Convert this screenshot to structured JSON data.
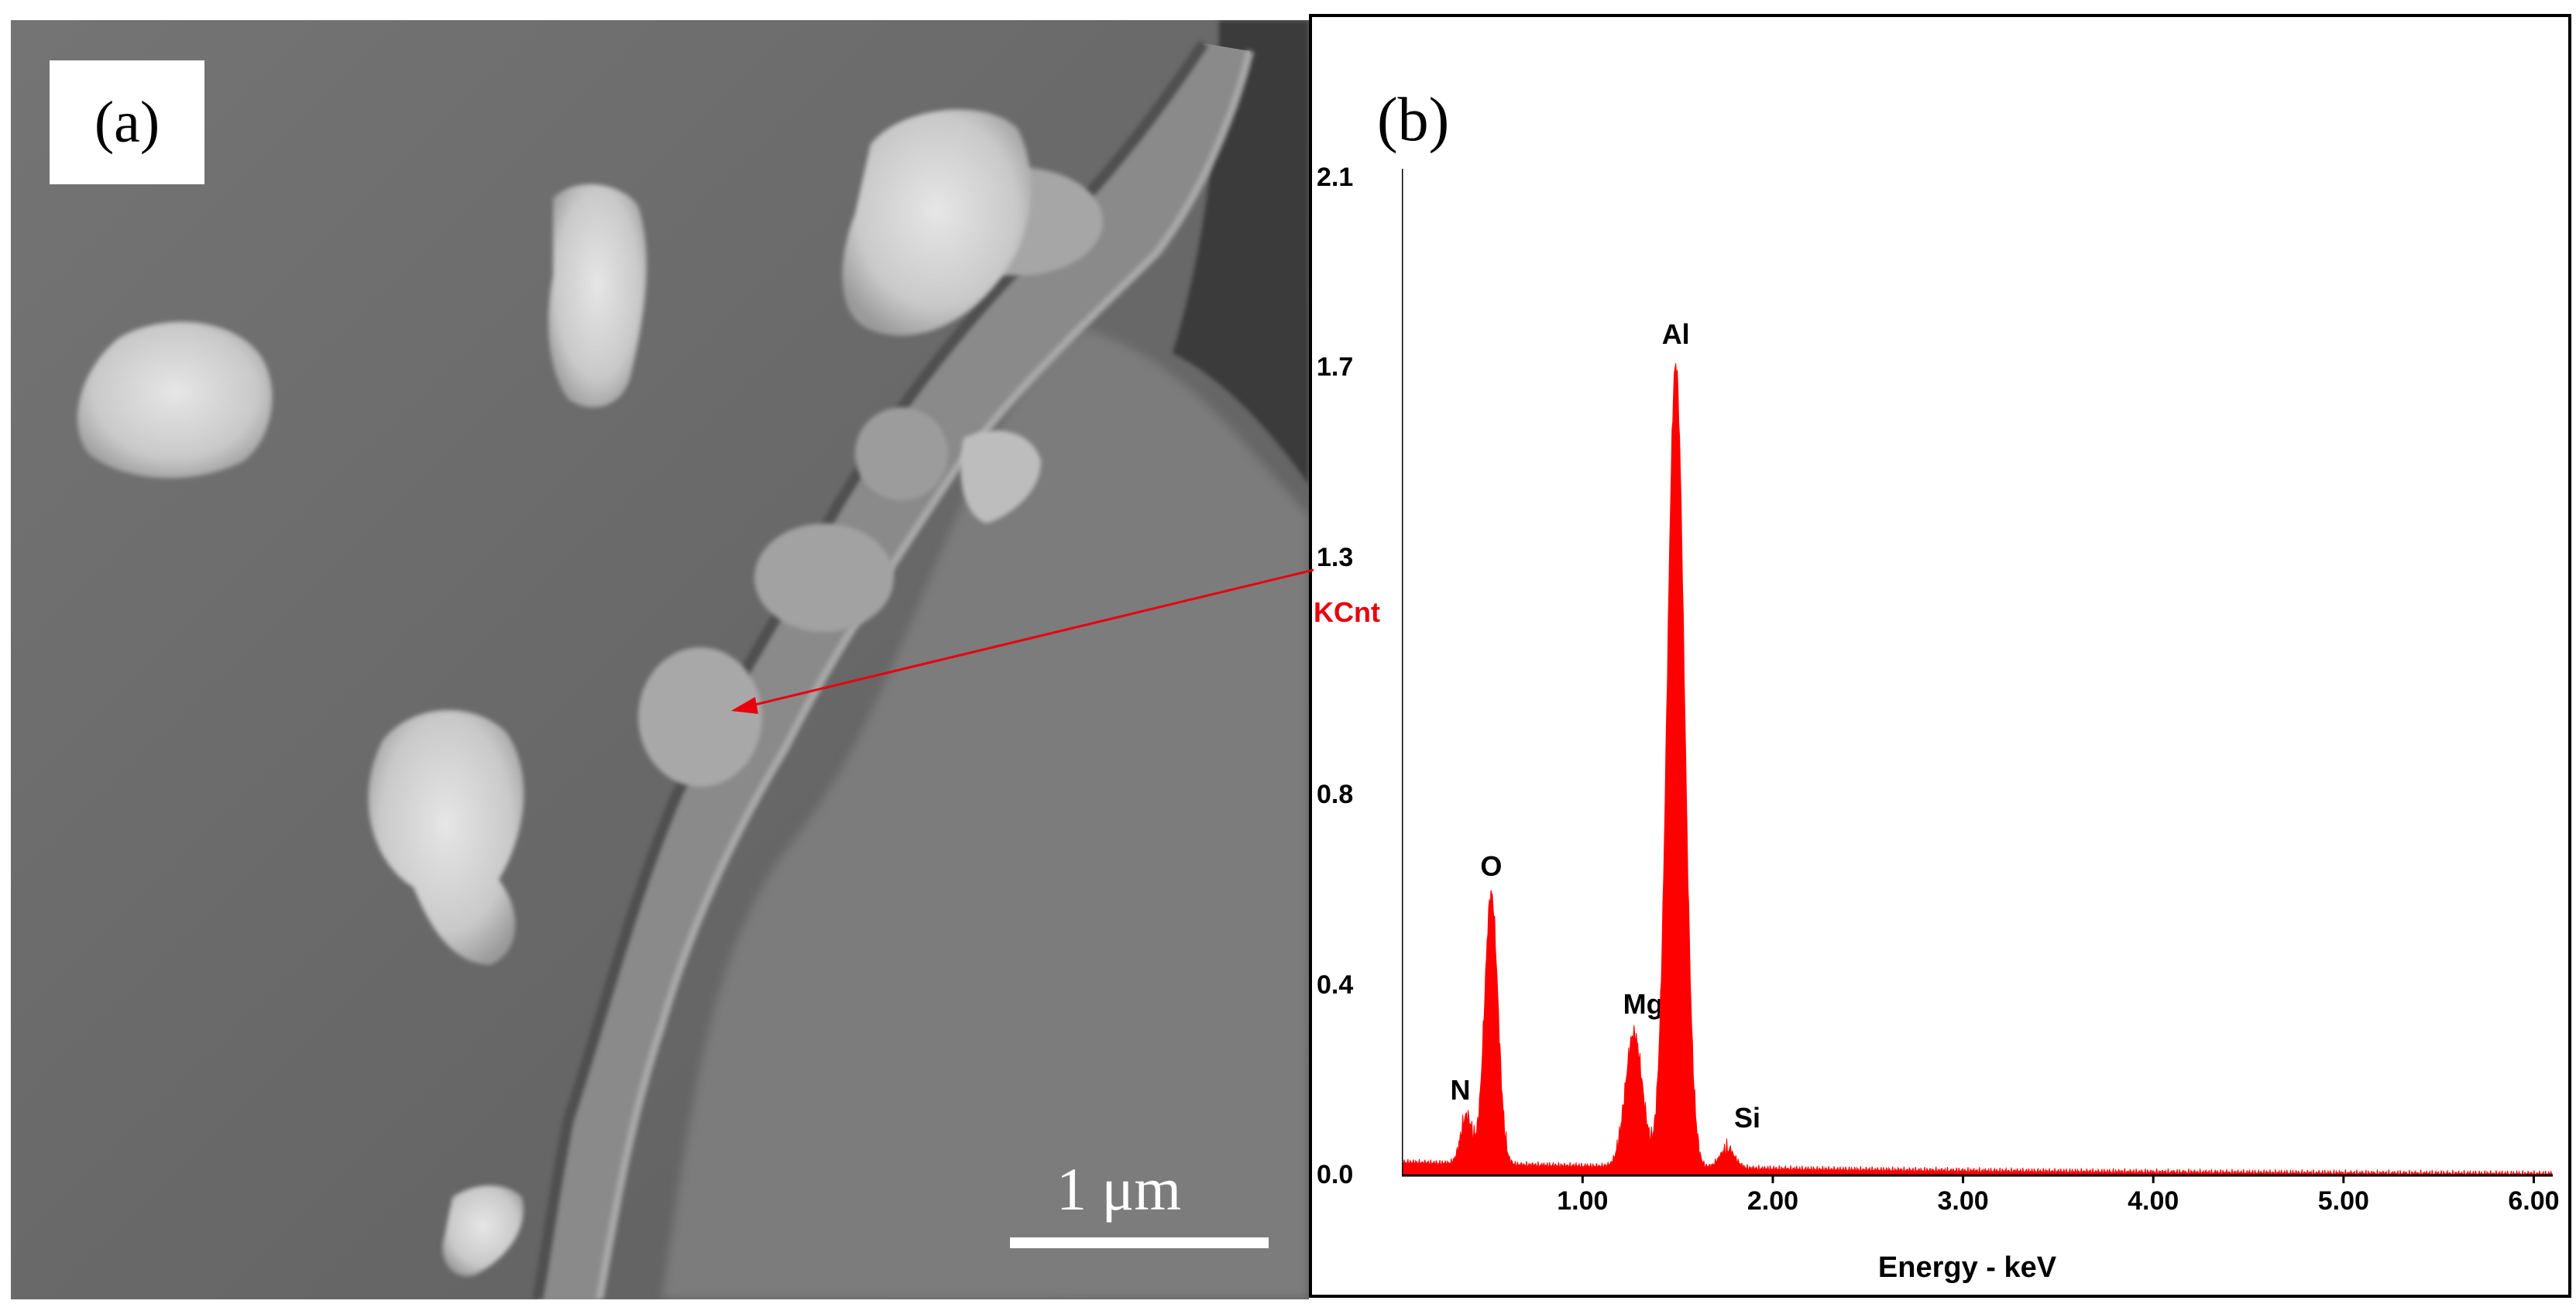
{
  "panel_a": {
    "label": "(a)",
    "scale_bar_text": "1 μm"
  },
  "panel_b": {
    "label": "(b)",
    "ylabel": "KCnt",
    "ylabel_color": "#e8000e"
  },
  "colors": {
    "spectrum": "#ff0000",
    "arrow": "#e8000e",
    "sem_background": "#6e6e6e"
  },
  "chart_data": {
    "type": "area",
    "title": "",
    "xlabel": "Energy - keV",
    "ylabel": "KCnt",
    "xlim": [
      0.05,
      6.1
    ],
    "ylim": [
      0.0,
      2.1
    ],
    "x_tick_labels": [
      "1.00",
      "2.00",
      "3.00",
      "4.00",
      "5.00",
      "6.00"
    ],
    "y_tick_labels": [
      "0.0",
      "0.4",
      "0.8",
      "1.3",
      "1.7",
      "2.1"
    ],
    "y_tick_values": [
      0.0,
      0.4,
      0.8,
      1.3,
      1.7,
      2.1
    ],
    "grid": false,
    "peaks": [
      {
        "element": "N",
        "energy": 0.39,
        "counts": 0.1,
        "width": 0.03
      },
      {
        "element": "O",
        "energy": 0.52,
        "counts": 0.57,
        "width": 0.035
      },
      {
        "element": "Mg",
        "energy": 1.27,
        "counts": 0.28,
        "width": 0.045
      },
      {
        "element": "Al",
        "energy": 1.49,
        "counts": 1.69,
        "width": 0.045
      },
      {
        "element": "Si",
        "energy": 1.76,
        "counts": 0.04,
        "width": 0.04
      }
    ],
    "background_counts": 0.02
  }
}
